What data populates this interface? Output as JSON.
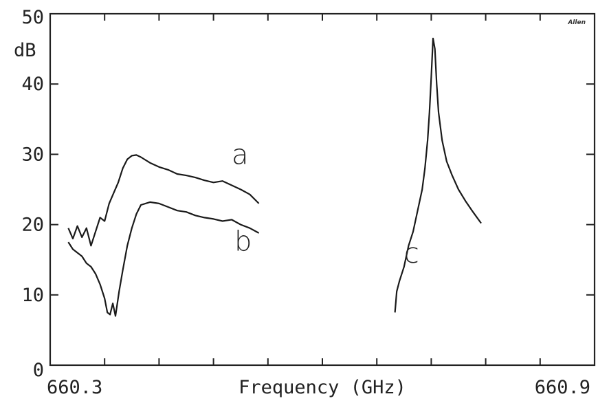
{
  "chart_data": {
    "type": "line",
    "xlabel": "Frequency (GHz)",
    "ylabel": "dB",
    "logo": "Allen",
    "xlim": [
      660.3,
      660.9
    ],
    "ylim": [
      0,
      50
    ],
    "x_tick_values": [
      660.3,
      660.36,
      660.42,
      660.48,
      660.54,
      660.6,
      660.66,
      660.72,
      660.78,
      660.84,
      660.9
    ],
    "x_tick_labels": [
      {
        "value": 660.3,
        "label": "660.3"
      },
      {
        "value": 660.9,
        "label": "660.9"
      }
    ],
    "y_ticks": [
      {
        "value": 0,
        "label": "0"
      },
      {
        "value": 10,
        "label": "10"
      },
      {
        "value": 20,
        "label": "20"
      },
      {
        "value": 30,
        "label": "30"
      },
      {
        "value": 40,
        "label": "40"
      },
      {
        "value": 50,
        "label": "50"
      }
    ],
    "grid": false,
    "annotations": [
      {
        "text": "a",
        "x": 660.5,
        "y": 28.6
      },
      {
        "text": "b",
        "x": 660.503,
        "y": 16.3
      },
      {
        "text": "c",
        "x": 660.69,
        "y": 14.6
      }
    ],
    "series": [
      {
        "x": [
          660.32,
          660.325,
          660.33,
          660.335,
          660.34,
          660.345,
          660.35,
          660.355,
          660.36,
          660.365,
          660.37,
          660.375,
          660.38,
          660.385,
          660.39,
          660.395,
          660.4,
          660.41,
          660.42,
          660.43,
          660.44,
          660.45,
          660.46,
          660.47,
          660.48,
          660.49,
          660.5,
          660.51,
          660.52,
          660.53
        ],
        "y": [
          19.5,
          18.0,
          19.8,
          18.2,
          19.5,
          17.0,
          19.0,
          21.0,
          20.5,
          23.0,
          24.5,
          26.0,
          28.0,
          29.3,
          29.8,
          29.9,
          29.6,
          28.8,
          28.2,
          27.8,
          27.2,
          27.0,
          26.7,
          26.3,
          26.0,
          26.2,
          25.6,
          25.0,
          24.3,
          23.0
        ]
      },
      {
        "x": [
          660.32,
          660.325,
          660.33,
          660.335,
          660.34,
          660.345,
          660.35,
          660.355,
          660.36,
          660.363,
          660.366,
          660.369,
          660.372,
          660.376,
          660.38,
          660.385,
          660.39,
          660.395,
          660.4,
          660.41,
          660.42,
          660.43,
          660.44,
          660.45,
          660.46,
          660.47,
          660.48,
          660.49,
          660.5,
          660.51,
          660.52,
          660.53
        ],
        "y": [
          17.5,
          16.5,
          16.0,
          15.5,
          14.5,
          14.0,
          13.0,
          11.5,
          9.5,
          7.5,
          7.2,
          8.8,
          7.0,
          10.5,
          13.5,
          17.0,
          19.5,
          21.5,
          22.8,
          23.2,
          23.0,
          22.5,
          22.0,
          21.8,
          21.3,
          21.0,
          20.8,
          20.5,
          20.7,
          20.0,
          19.5,
          18.8
        ]
      },
      {
        "x": [
          660.68,
          660.682,
          660.685,
          660.69,
          660.695,
          660.7,
          660.705,
          660.71,
          660.713,
          660.716,
          660.718,
          660.72,
          660.722,
          660.724,
          660.726,
          660.728,
          660.732,
          660.737,
          660.743,
          660.75,
          660.758,
          660.766,
          660.775
        ],
        "y": [
          7.5,
          10.5,
          12.0,
          14.0,
          17.0,
          19.0,
          22.0,
          25.0,
          28.0,
          32.0,
          36.0,
          41.0,
          46.5,
          45.0,
          40.0,
          36.0,
          32.0,
          29.0,
          27.0,
          25.0,
          23.3,
          21.8,
          20.2
        ]
      }
    ]
  }
}
